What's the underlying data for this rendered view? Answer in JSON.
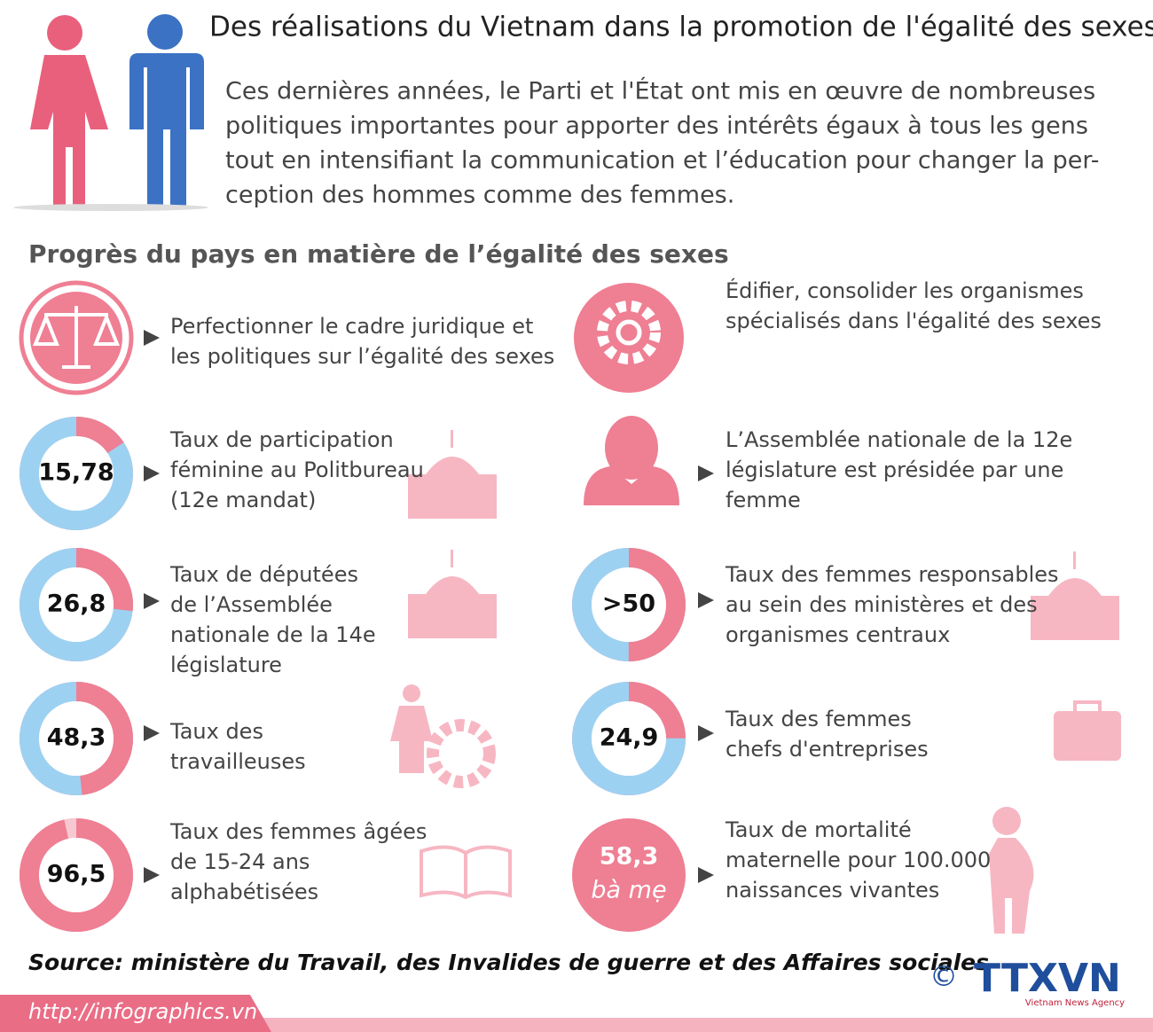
{
  "header": {
    "title": "Des réalisations du Vietnam dans la promotion de l'égalité des sexes",
    "intro": [
      "Ces dernières années, le Parti et l'État ont mis en œuvre de nombreuses",
      "politiques importantes pour apporter des intérêts égaux à tous les gens",
      "tout en intensifiant la communication et l’éducation pour changer la per-",
      "ception des hommes comme des femmes."
    ]
  },
  "section_title": "Progrès du pays en matière de l’égalité des sexes",
  "left_items": [
    {
      "lines": [
        "Perfectionner le cadre juridique et",
        "les politiques sur l’égalité des sexes"
      ]
    },
    {
      "value": 15.78,
      "value_label": "15,78",
      "lines": [
        "Taux de participation",
        "féminine au Politbureau",
        "(12e mandat)"
      ]
    },
    {
      "value": 26.8,
      "value_label": "26,8",
      "lines": [
        "Taux de députées",
        "de l’Assemblée",
        "nationale de la 14e",
        " législature"
      ]
    },
    {
      "value": 48.3,
      "value_label": "48,3",
      "lines": [
        "Taux des",
        "travailleuses"
      ]
    },
    {
      "value": 96.5,
      "value_label": "96,5",
      "lines": [
        "Taux des femmes âgées",
        "de 15-24 ans",
        "alphabétisées"
      ]
    }
  ],
  "right_items": [
    {
      "lines": [
        "Édifier, consolider les organismes",
        "spécialisés dans l'égalité des sexes"
      ]
    },
    {
      "lines": [
        "L’Assemblée nationale de la 12e",
        "législature est présidée par une",
        "femme"
      ]
    },
    {
      "value": 50,
      "value_label": ">50",
      "lines": [
        "Taux des femmes responsables",
        " au sein des ministères et des",
        "organismes centraux"
      ]
    },
    {
      "value": 24.9,
      "value_label": "24,9",
      "lines": [
        "Taux des femmes",
        "chefs d'entreprises"
      ]
    },
    {
      "figure": "58,3",
      "figure_unit": "bà mẹ",
      "lines": [
        " Taux de mortalité",
        "maternelle pour 100.000",
        "naissances vivantes"
      ]
    }
  ],
  "source": "Source: ministère du Travail, des Invalides de guerre et des Affaires sociales",
  "footer": {
    "url": "http://infographics.vn",
    "copyright": "©",
    "logo": "TTXVN",
    "logo_subtitle": "Vietnam News Agency"
  }
}
